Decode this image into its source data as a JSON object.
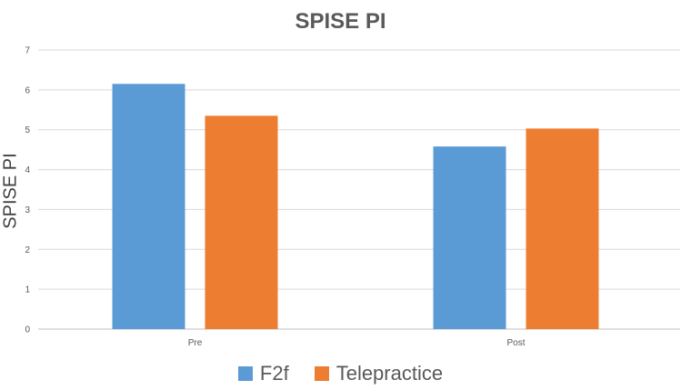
{
  "chart_data": {
    "type": "bar",
    "title": "SPISE PI",
    "ylabel": "SPISE PI",
    "xlabel": "",
    "categories": [
      "Pre",
      "Post"
    ],
    "ylim": [
      0,
      7
    ],
    "yticks": [
      "0",
      "1",
      "2",
      "3",
      "4",
      "5",
      "6",
      "7"
    ],
    "grid": true,
    "legend_position": "bottom",
    "series": [
      {
        "name": "F2f",
        "values": [
          6.15,
          4.58
        ],
        "color": "#5b9bd5"
      },
      {
        "name": "Telepractice",
        "values": [
          5.35,
          5.03
        ],
        "color": "#ed7d31"
      }
    ]
  }
}
